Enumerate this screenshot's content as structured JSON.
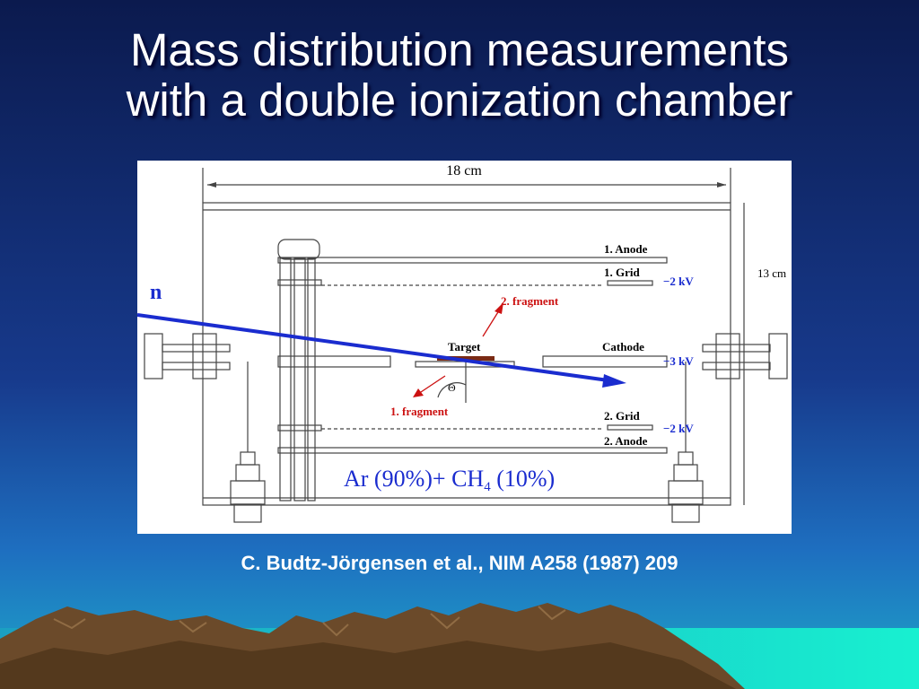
{
  "slide": {
    "title_line1": "Mass distribution measurements",
    "title_line2": "with a double ionization chamber",
    "caption": "C. Budtz-Jörgensen et al., NIM A258 (1987) 209"
  },
  "diagram": {
    "width_label": "18 cm",
    "height_label": "13 cm",
    "neutron_label": "n",
    "anode1": "1. Anode",
    "grid1": "1. Grid",
    "grid1_voltage": "−2 kV",
    "fragment2": "2. fragment",
    "target": "Target",
    "cathode": "Cathode",
    "cathode_voltage": "−3 kV",
    "theta": "Θ",
    "fragment1": "1. fragment",
    "grid2": "2. Grid",
    "grid2_voltage": "−2 kV",
    "anode2": "2. Anode",
    "gas_part1": "Ar (90%)+  CH",
    "gas_sub": "4",
    "gas_part2": " (10%)"
  },
  "colors": {
    "sky_top": "#0b1a4e",
    "sky_bottom": "#1a63b8",
    "sea": "#20d4c8",
    "mountain": "#6b4a2a",
    "neutron_beam": "#1a2ccf",
    "fragment": "#cc1111",
    "target": "#7a2a14",
    "voltage": "#1a2ccf"
  }
}
